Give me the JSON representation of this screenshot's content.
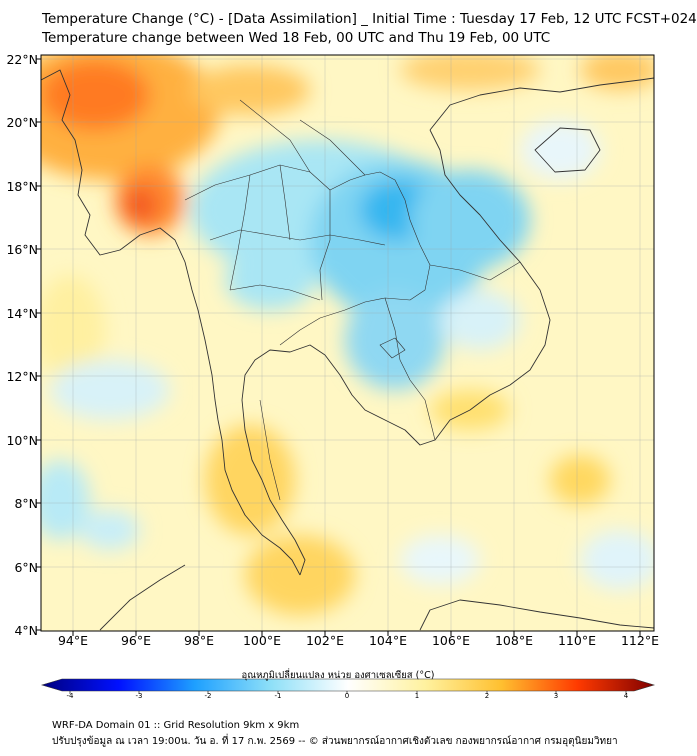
{
  "title_line1": "Temperature Change (°C) - [Data Assimilation] _ Initial Time : Tuesday 17 Feb, 12 UTC FCST+024",
  "title_line2": "Temperature change between Wed 18 Feb, 00 UTC and Thu 19 Feb, 00 UTC",
  "map": {
    "lat_labels": [
      "22°N",
      "20°N",
      "18°N",
      "16°N",
      "14°N",
      "12°N",
      "10°N",
      "8°N",
      "6°N",
      "4°N"
    ],
    "lon_labels": [
      "94°E",
      "96°E",
      "98°E",
      "100°E",
      "102°E",
      "104°E",
      "106°E",
      "108°E",
      "110°E",
      "112°E"
    ]
  },
  "colorbar": {
    "title": "อุณหภูมิเปลี่ยนแปลง หน่วย องศาเซลเซียส (°C)",
    "ticks": [
      "-4",
      "-3",
      "-2",
      "-1",
      "0",
      "1",
      "2",
      "3",
      "4"
    ],
    "min": -4,
    "max": 4
  },
  "footer_line1": "WRF-DA Domain 01 :: Grid Resolution 9km x 9km",
  "footer_line2": "ปรับปรุงข้อมูล ณ เวลา 19:00น. วัน อ. ที่ 17 ก.พ. 2569 -- © ส่วนพยากรณ์อากาศเชิงตัวเลข กองพยากรณ์อากาศ กรมอุตุนิยมวิทยา"
}
